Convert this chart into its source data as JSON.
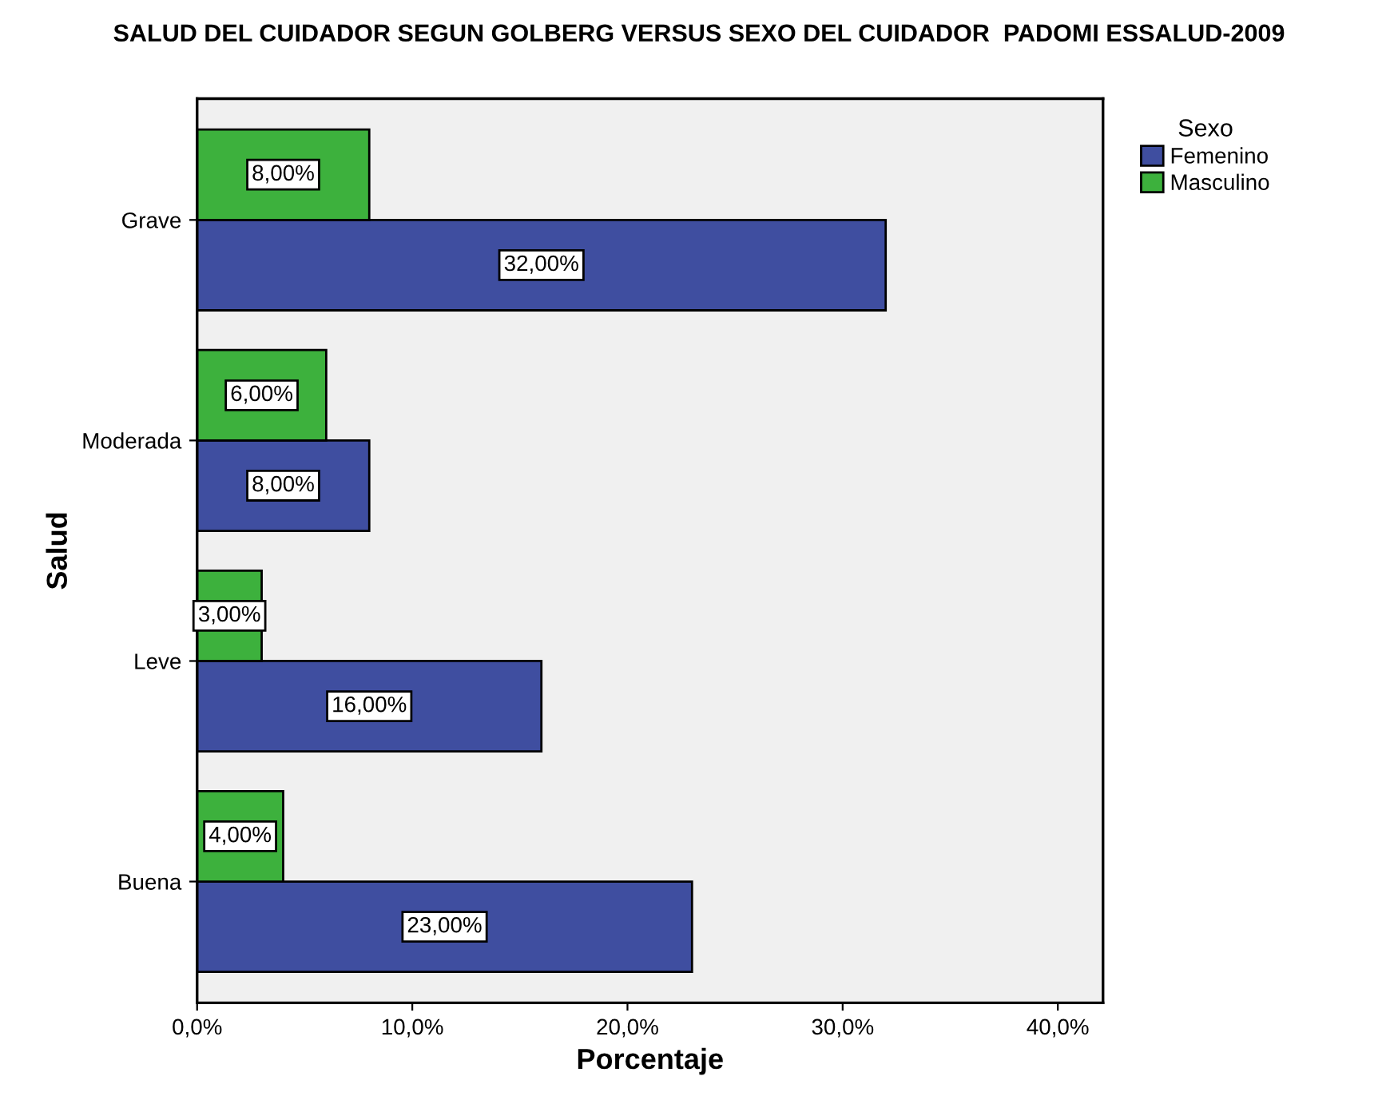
{
  "chart_data": {
    "type": "bar",
    "orientation": "horizontal",
    "title": "SALUD DEL CUIDADOR SEGUN GOLBERG VERSUS SEXO DEL CUIDADOR  PADOMI ESSALUD-2009",
    "xlabel": "Porcentaje",
    "ylabel": "Salud",
    "legend_title": "Sexo",
    "legend": "top right",
    "categories": [
      "Grave",
      "Moderada",
      "Leve",
      "Buena"
    ],
    "series": [
      {
        "name": "Femenino",
        "color": "#3f4ea0",
        "values": [
          32,
          8,
          16,
          23
        ],
        "value_labels": [
          "32,00%",
          "8,00%",
          "16,00%",
          "23,00%"
        ]
      },
      {
        "name": "Masculino",
        "color": "#3db13d",
        "values": [
          8,
          6,
          3,
          4
        ],
        "value_labels": [
          "8,00%",
          "6,00%",
          "3,00%",
          "4,00%"
        ]
      }
    ],
    "xlim": [
      0,
      42.1
    ],
    "xticks": [
      {
        "value": 0,
        "label": "0,0%"
      },
      {
        "value": 10,
        "label": "10,0%"
      },
      {
        "value": 20,
        "label": "20,0%"
      },
      {
        "value": 30,
        "label": "30,0%"
      },
      {
        "value": 40,
        "label": "40,0%"
      }
    ],
    "grid": false
  }
}
